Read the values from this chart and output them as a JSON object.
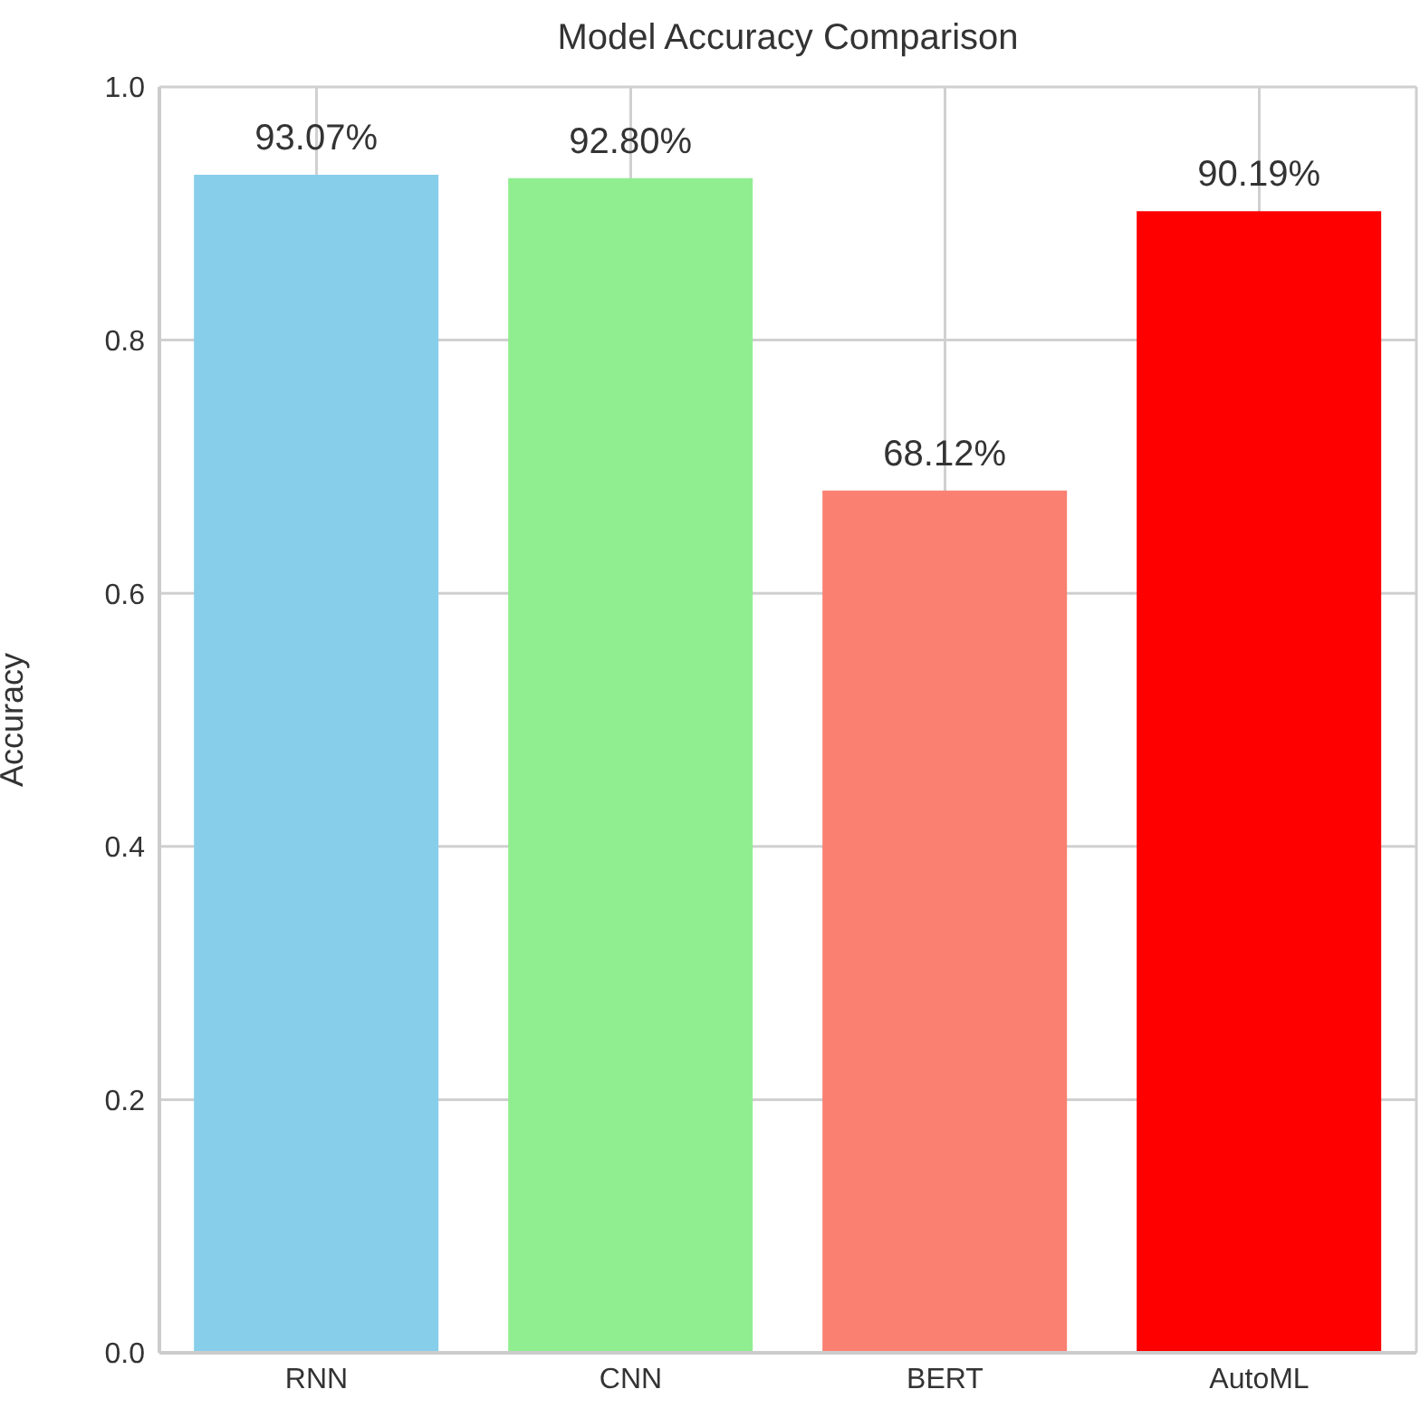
{
  "chart_data": {
    "type": "bar",
    "title": "Model Accuracy Comparison",
    "ylabel": "Accuracy",
    "categories": [
      "RNN",
      "CNN",
      "BERT",
      "AutoML"
    ],
    "values": [
      0.9307,
      0.928,
      0.6812,
      0.9019
    ],
    "colors": [
      "#87ceeb",
      "#90ee90",
      "#fa8072",
      "#ff0000"
    ],
    "value_labels": [
      "93.07%",
      "92.80%",
      "68.12%",
      "90.19%"
    ],
    "ylim": [
      0,
      1
    ],
    "yticks": [
      {
        "value": 0,
        "label": "0.0"
      },
      0.2,
      0.4,
      0.6,
      0.8,
      {
        "value": 1,
        "label": "1.0"
      }
    ],
    "grid": true
  }
}
